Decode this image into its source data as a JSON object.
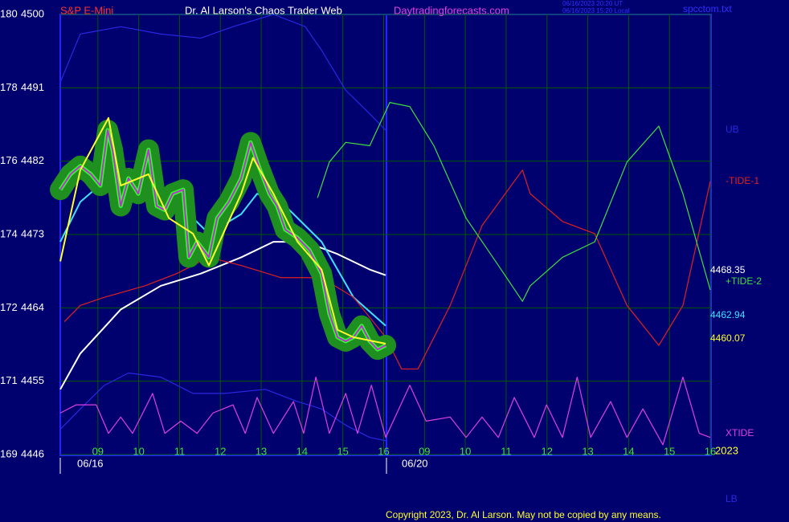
{
  "chart_data": {
    "type": "line",
    "title": "S&P E-Mini",
    "subtitle": "Dr. Al Larson's Chaos Trader Web",
    "site": "Daytradingforecasts.com",
    "timestamps": [
      "06/16/2023 20:20 UT",
      "06/16/2023 15:20 Local"
    ],
    "file": "spcctom.txt",
    "copyright": "Copyright 2023, Dr. Al Larson. May not be copied by any means.",
    "year": "2023",
    "dates": [
      "06/16",
      "06/20"
    ],
    "xlim": [
      0,
      16
    ],
    "xticks": [
      {
        "value": 1,
        "label": "09"
      },
      {
        "value": 2,
        "label": "10"
      },
      {
        "value": 3,
        "label": "11"
      },
      {
        "value": 4,
        "label": "12"
      },
      {
        "value": 5,
        "label": "13"
      },
      {
        "value": 6,
        "label": "14"
      },
      {
        "value": 7,
        "label": "15"
      },
      {
        "value": 8,
        "label": "16"
      },
      {
        "value": 9,
        "label": "09"
      },
      {
        "value": 10,
        "label": "10"
      },
      {
        "value": 11,
        "label": "11"
      },
      {
        "value": 12,
        "label": "12"
      },
      {
        "value": 13,
        "label": "13"
      },
      {
        "value": 14,
        "label": "14"
      },
      {
        "value": 15,
        "label": "15"
      },
      {
        "value": 16,
        "label": "16"
      }
    ],
    "ylim": [
      4446,
      4500
    ],
    "yticks": [
      4446,
      4455,
      4464,
      4473,
      4482,
      4491,
      4500
    ],
    "y_secondary_labels": [
      "169",
      "171",
      "172",
      "174",
      "176",
      "178",
      "180"
    ],
    "grid": true,
    "series": [
      {
        "name": "UB",
        "color": "#2828e0",
        "x": [
          0.08,
          0.57,
          1.56,
          2.54,
          3.52,
          4.31,
          5.3,
          6.08,
          6.48,
          7.07,
          7.66,
          8.05
        ],
        "values": [
          4491.7,
          4497.6,
          4498.5,
          4497.6,
          4497.1,
          4498.5,
          4500,
          4498.5,
          4495.6,
          4490.7,
          4487.8,
          4485.8
        ]
      },
      {
        "name": "LB",
        "color": "#2828e0",
        "x": [
          0.08,
          0.57,
          1.16,
          1.75,
          2.54,
          3.33,
          4.11,
          5.1,
          5.89,
          6.48,
          7.07,
          7.66,
          8.05
        ],
        "values": [
          4449.1,
          4451.6,
          4454.5,
          4456.0,
          4455.5,
          4453.5,
          4453.5,
          4454.0,
          4452.5,
          4451.6,
          4449.6,
          4448.1,
          4447.7
        ]
      },
      {
        "color": "#ffffff",
        "last_value": 4468.35,
        "x": [
          0.08,
          0.57,
          1.56,
          2.54,
          3.52,
          4.51,
          5.3,
          6.08,
          6.87,
          7.66,
          8.05
        ],
        "values": [
          4454.0,
          4458.4,
          4463.8,
          4466.7,
          4468.2,
          4470.2,
          4472.1,
          4472.1,
          4470.6,
          4468.7,
          4468.0
        ]
      },
      {
        "color": "#40e0ff",
        "last_value": 4462.94,
        "x": [
          0.08,
          0.57,
          1.36,
          2.15,
          3.13,
          3.72,
          4.51,
          4.9,
          5.49,
          6.48,
          7.26,
          8.05
        ],
        "values": [
          4472.1,
          4477.0,
          4480.4,
          4478.5,
          4476.0,
          4473.1,
          4475.5,
          4478.0,
          4477.0,
          4472.1,
          4465.3,
          4461.8
        ]
      },
      {
        "name": "-TIDE-1",
        "color": "#e02020",
        "x": [
          0.18,
          0.57,
          1.16,
          2.15,
          2.93,
          3.72,
          4.51,
          5.49,
          6.48,
          7.26,
          8.05,
          8.44,
          8.84,
          9.63,
          10.41,
          11.4,
          11.59,
          12.38,
          13.17,
          13.96,
          14.74,
          15.33,
          16.0
        ],
        "values": [
          4462.3,
          4464.3,
          4465.3,
          4466.7,
          4468.2,
          4470.2,
          4469.2,
          4467.7,
          4467.7,
          4465.3,
          4460.4,
          4456.5,
          4456.5,
          4464.3,
          4474.1,
          4480.9,
          4478.0,
          4474.6,
          4473.1,
          4464.3,
          4459.4,
          4464.3,
          4479.5
        ]
      },
      {
        "name": "+TIDE-2",
        "color": "#40e040",
        "x": [
          6.38,
          6.67,
          7.07,
          7.66,
          8.15,
          8.64,
          9.23,
          10.02,
          10.81,
          11.4,
          11.59,
          12.38,
          13.17,
          13.96,
          14.74,
          15.33,
          16.0
        ],
        "values": [
          4477.5,
          4481.9,
          4484.3,
          4483.9,
          4489.2,
          4488.7,
          4483.9,
          4475.0,
          4469.2,
          4464.8,
          4466.7,
          4470.2,
          4472.1,
          4481.9,
          4486.3,
          4478.0,
          4466.2
        ]
      },
      {
        "name": "XTIDE",
        "color": "#e040e0",
        "x": [
          0.08,
          0.47,
          0.96,
          1.26,
          1.56,
          1.85,
          2.34,
          2.64,
          3.03,
          3.43,
          3.82,
          4.31,
          4.61,
          4.9,
          5.3,
          5.79,
          6.04,
          6.34,
          6.67,
          7.07,
          7.36,
          7.7,
          8.05,
          8.64,
          9.04,
          9.63,
          10.02,
          10.41,
          10.81,
          11.2,
          11.69,
          11.99,
          12.38,
          12.74,
          13.07,
          13.56,
          13.96,
          14.35,
          14.84,
          15.33,
          15.73,
          16.0
        ],
        "values": [
          4451.1,
          4452.1,
          4452.1,
          4448.6,
          4450.6,
          4448.6,
          4453.5,
          4448.6,
          4450.1,
          4448.6,
          4451.1,
          4452.1,
          4448.6,
          4453.0,
          4448.6,
          4452.5,
          4448.6,
          4455.5,
          4448.6,
          4453.5,
          4448.6,
          4454.5,
          4448.1,
          4454.5,
          4450.1,
          4450.6,
          4448.1,
          4450.6,
          4448.1,
          4453.0,
          4448.1,
          4452.1,
          4448.1,
          4455.5,
          4448.1,
          4452.5,
          4448.1,
          4451.6,
          4447.2,
          4455.5,
          4448.6,
          4448.1
        ]
      },
      {
        "color": "#c030d0",
        "x": [
          0.08,
          0.33,
          0.57,
          0.83,
          1.06,
          1.24,
          1.36,
          1.56,
          1.75,
          1.99,
          2.24,
          2.44,
          2.64,
          2.83,
          3.09,
          3.23,
          3.43,
          3.72,
          3.92,
          4.21,
          4.51,
          4.74,
          4.94,
          5.2,
          5.39,
          5.59,
          5.89,
          6.18,
          6.48,
          6.67,
          6.87,
          7.07,
          7.26,
          7.46,
          7.66,
          7.85,
          8.05
        ],
        "values": [
          4478.5,
          4480.4,
          4481.4,
          4480.4,
          4479.0,
          4485.8,
          4483.4,
          4476.5,
          4479.9,
          4478.0,
          4483.4,
          4476.5,
          4476.0,
          4478.0,
          4478.5,
          4470.2,
          4472.1,
          4470.2,
          4475.0,
          4477.0,
          4479.9,
          4484.3,
          4481.4,
          4478.0,
          4476.5,
          4473.6,
          4472.6,
          4471.1,
          4468.2,
          4463.3,
          4460.4,
          4459.9,
          4460.4,
          4461.8,
          4459.9,
          4458.9,
          4459.4
        ]
      },
      {
        "color": "#ffff30",
        "last_value": 4460.07,
        "x": [
          0.08,
          0.57,
          1.26,
          1.56,
          2.24,
          2.74,
          3.33,
          3.72,
          4.51,
          4.8,
          5.3,
          5.89,
          6.48,
          6.87,
          7.26,
          8.05
        ],
        "values": [
          4469.7,
          4480.9,
          4487.3,
          4479.0,
          4480.4,
          4475.0,
          4473.1,
          4469.2,
          4478.0,
          4482.4,
          4478.0,
          4472.1,
          4468.7,
          4461.3,
          4460.4,
          4459.6
        ]
      }
    ]
  }
}
